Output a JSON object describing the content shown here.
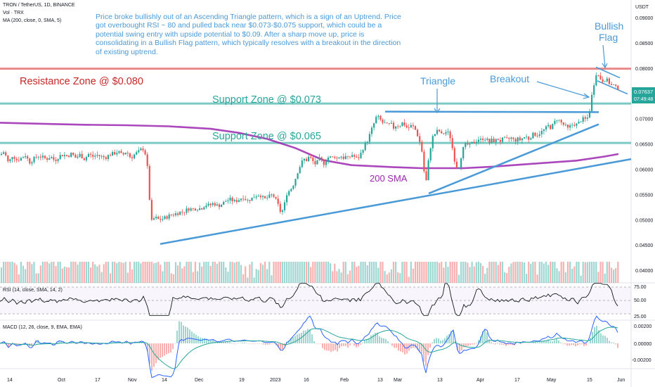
{
  "header": {
    "symbol_line": "TRON / TetherUS, 1D, BINANCE",
    "vol_line": "Vol · TRX",
    "ma_line": "MA (200, close, 0, SMA, 5)"
  },
  "analysis_note": "Price broke bullishly out of an Ascending Triangle pattern, which is a sign of an Uptrend. Price got overbought RSI ~ 80 and pulled back near $0.073-$0.075 support, which could be a potential swing entry with upside potential to $0.09. After a sharp move up, price is consolidating in a Bullish Flag pattern, which typically resolves with a breakout in the direction of existing uptrend.",
  "price_axis": {
    "unit": "USDT",
    "ticks": [
      "0.09000",
      "0.08500",
      "0.08000",
      "0.07500",
      "0.07000",
      "0.06500",
      "0.06000",
      "0.05500",
      "0.05000",
      "0.04500",
      "0.04000"
    ],
    "last_price": "0.07637",
    "countdown": "07:49:48"
  },
  "time_axis": [
    "14",
    "Oct",
    "17",
    "Nov",
    "14",
    "Dec",
    "19",
    "2023",
    "16",
    "Feb",
    "13",
    "Mar",
    "13",
    "Apr",
    "17",
    "May",
    "15",
    "Jun"
  ],
  "labels": {
    "resistance": "Resistance Zone @ $0.080",
    "support_073": "Support Zone @ $0.073",
    "support_065": "Support Zone @ $0.065",
    "sma": "200 SMA",
    "triangle": "Triangle",
    "breakout": "Breakout",
    "flag_line1": "Bullish",
    "flag_line2": "Flag"
  },
  "rsi_panel": {
    "title": "RSI (14, close, SMA, 14, 2)",
    "ticks": [
      "75.00",
      "50.00",
      "25.00"
    ]
  },
  "macd_panel": {
    "title": "MACD (12, 26, close, 9, EMA, EMA)",
    "ticks": [
      "0.00200",
      "0.00000",
      "-0.00200"
    ]
  },
  "colors": {
    "up": "#26a69a",
    "down": "#ef5350",
    "sma": "#9c27b0",
    "trend": "#4a9ad8",
    "support": "#26a69a",
    "resistance": "#e57373",
    "last_price_bg": "#26a69a"
  },
  "chart_data": {
    "type": "candlestick",
    "pair": "TRON / TetherUS",
    "timeframe": "1D",
    "exchange": "BINANCE",
    "ylim": [
      0.0375,
      0.0935
    ],
    "close_path": [
      [
        0,
        0.0628
      ],
      [
        6,
        0.0635
      ],
      [
        12,
        0.0612
      ],
      [
        18,
        0.0628
      ],
      [
        24,
        0.0618
      ],
      [
        30,
        0.0622
      ],
      [
        36,
        0.0628
      ],
      [
        42,
        0.0614
      ],
      [
        48,
        0.062
      ],
      [
        54,
        0.0627
      ],
      [
        60,
        0.0624
      ],
      [
        66,
        0.062
      ],
      [
        72,
        0.0625
      ],
      [
        78,
        0.0617
      ],
      [
        84,
        0.0626
      ],
      [
        90,
        0.0629
      ],
      [
        96,
        0.0626
      ],
      [
        102,
        0.0631
      ],
      [
        108,
        0.0622
      ],
      [
        114,
        0.0629
      ],
      [
        120,
        0.062
      ],
      [
        126,
        0.063
      ],
      [
        132,
        0.0625
      ],
      [
        138,
        0.0628
      ],
      [
        144,
        0.0625
      ],
      [
        150,
        0.0623
      ],
      [
        156,
        0.0629
      ],
      [
        162,
        0.0631
      ],
      [
        168,
        0.0635
      ],
      [
        174,
        0.0627
      ],
      [
        180,
        0.0636
      ],
      [
        186,
        0.0622
      ],
      [
        192,
        0.063
      ],
      [
        198,
        0.0635
      ],
      [
        203,
        0.0642
      ],
      [
        207,
        0.063
      ],
      [
        210,
        0.06
      ],
      [
        212,
        0.0555
      ],
      [
        214,
        0.052
      ],
      [
        216,
        0.0495
      ],
      [
        220,
        0.0505
      ],
      [
        226,
        0.05
      ],
      [
        232,
        0.0502
      ],
      [
        238,
        0.0506
      ],
      [
        244,
        0.051
      ],
      [
        250,
        0.0512
      ],
      [
        256,
        0.0515
      ],
      [
        262,
        0.0516
      ],
      [
        268,
        0.0522
      ],
      [
        274,
        0.0521
      ],
      [
        280,
        0.0523
      ],
      [
        286,
        0.0522
      ],
      [
        292,
        0.053
      ],
      [
        298,
        0.0528
      ],
      [
        304,
        0.0533
      ],
      [
        310,
        0.0527
      ],
      [
        316,
        0.0531
      ],
      [
        322,
        0.0538
      ],
      [
        328,
        0.054
      ],
      [
        334,
        0.0536
      ],
      [
        340,
        0.054
      ],
      [
        346,
        0.0545
      ],
      [
        352,
        0.0538
      ],
      [
        358,
        0.0542
      ],
      [
        364,
        0.0548
      ],
      [
        370,
        0.055
      ],
      [
        376,
        0.054
      ],
      [
        382,
        0.0545
      ],
      [
        388,
        0.055
      ],
      [
        392,
        0.054
      ],
      [
        396,
        0.0528
      ],
      [
        400,
        0.0512
      ],
      [
        404,
        0.0525
      ],
      [
        408,
        0.0552
      ],
      [
        412,
        0.0558
      ],
      [
        416,
        0.0565
      ],
      [
        420,
        0.058
      ],
      [
        424,
        0.0597
      ],
      [
        428,
        0.061
      ],
      [
        432,
        0.062
      ],
      [
        436,
        0.0618
      ],
      [
        440,
        0.0625
      ],
      [
        444,
        0.0618
      ],
      [
        448,
        0.061
      ],
      [
        452,
        0.0615
      ],
      [
        456,
        0.0622
      ],
      [
        460,
        0.061
      ],
      [
        464,
        0.0618
      ],
      [
        468,
        0.0625
      ],
      [
        472,
        0.0622
      ],
      [
        476,
        0.0626
      ],
      [
        480,
        0.062
      ],
      [
        484,
        0.0628
      ],
      [
        488,
        0.0622
      ],
      [
        492,
        0.0625
      ],
      [
        496,
        0.062
      ],
      [
        500,
        0.063
      ],
      [
        504,
        0.0625
      ],
      [
        508,
        0.062
      ],
      [
        512,
        0.0626
      ],
      [
        516,
        0.064
      ],
      [
        520,
        0.065
      ],
      [
        524,
        0.066
      ],
      [
        528,
        0.0676
      ],
      [
        532,
        0.069
      ],
      [
        536,
        0.0705
      ],
      [
        540,
        0.07
      ],
      [
        544,
        0.0692
      ],
      [
        548,
        0.069
      ],
      [
        552,
        0.0686
      ],
      [
        556,
        0.069
      ],
      [
        560,
        0.0682
      ],
      [
        564,
        0.0688
      ],
      [
        568,
        0.0685
      ],
      [
        572,
        0.0692
      ],
      [
        576,
        0.0688
      ],
      [
        580,
        0.068
      ],
      [
        584,
        0.0686
      ],
      [
        588,
        0.0684
      ],
      [
        592,
        0.0676
      ],
      [
        596,
        0.066
      ],
      [
        600,
        0.064
      ],
      [
        602,
        0.061
      ],
      [
        604,
        0.059
      ],
      [
        606,
        0.057
      ],
      [
        608,
        0.0598
      ],
      [
        612,
        0.064
      ],
      [
        616,
        0.0665
      ],
      [
        620,
        0.0672
      ],
      [
        624,
        0.0678
      ],
      [
        628,
        0.0668
      ],
      [
        632,
        0.0672
      ],
      [
        636,
        0.0674
      ],
      [
        640,
        0.0668
      ],
      [
        644,
        0.064
      ],
      [
        648,
        0.061
      ],
      [
        652,
        0.06
      ],
      [
        656,
        0.0625
      ],
      [
        660,
        0.0645
      ],
      [
        664,
        0.065
      ],
      [
        668,
        0.0646
      ],
      [
        672,
        0.0652
      ],
      [
        676,
        0.0654
      ],
      [
        680,
        0.066
      ],
      [
        684,
        0.0658
      ],
      [
        688,
        0.0662
      ],
      [
        692,
        0.066
      ],
      [
        696,
        0.0652
      ],
      [
        700,
        0.0658
      ],
      [
        704,
        0.0655
      ],
      [
        708,
        0.066
      ],
      [
        712,
        0.0656
      ],
      [
        716,
        0.066
      ],
      [
        720,
        0.0658
      ],
      [
        724,
        0.066
      ],
      [
        728,
        0.0662
      ],
      [
        732,
        0.0656
      ],
      [
        736,
        0.066
      ],
      [
        740,
        0.0658
      ],
      [
        744,
        0.0662
      ],
      [
        748,
        0.0665
      ],
      [
        752,
        0.066
      ],
      [
        756,
        0.0666
      ],
      [
        760,
        0.067
      ],
      [
        764,
        0.0668
      ],
      [
        768,
        0.0672
      ],
      [
        772,
        0.0675
      ],
      [
        776,
        0.068
      ],
      [
        780,
        0.0686
      ],
      [
        784,
        0.0682
      ],
      [
        788,
        0.069
      ],
      [
        792,
        0.07
      ],
      [
        796,
        0.0696
      ],
      [
        800,
        0.069
      ],
      [
        804,
        0.0686
      ],
      [
        808,
        0.068
      ],
      [
        812,
        0.0686
      ],
      [
        816,
        0.069
      ],
      [
        820,
        0.0688
      ],
      [
        824,
        0.0692
      ],
      [
        828,
        0.07
      ],
      [
        832,
        0.0698
      ],
      [
        836,
        0.0702
      ],
      [
        838,
        0.071
      ],
      [
        840,
        0.0725
      ],
      [
        842,
        0.0745
      ],
      [
        844,
        0.076
      ],
      [
        846,
        0.0776
      ],
      [
        848,
        0.079
      ],
      [
        850,
        0.0788
      ],
      [
        852,
        0.0783
      ],
      [
        854,
        0.078
      ],
      [
        856,
        0.0778
      ],
      [
        858,
        0.0775
      ],
      [
        860,
        0.078
      ],
      [
        862,
        0.0774
      ],
      [
        864,
        0.0776
      ],
      [
        866,
        0.077
      ],
      [
        868,
        0.0772
      ],
      [
        870,
        0.0766
      ],
      [
        872,
        0.0768
      ],
      [
        874,
        0.0764
      ],
      [
        876,
        0.0762
      ],
      [
        878,
        0.0758
      ],
      [
        880,
        0.0763
      ]
    ],
    "sma_200_path": [
      [
        0,
        0.0692
      ],
      [
        60,
        0.069
      ],
      [
        120,
        0.0688
      ],
      [
        180,
        0.0687
      ],
      [
        240,
        0.0685
      ],
      [
        300,
        0.068
      ],
      [
        340,
        0.0672
      ],
      [
        380,
        0.066
      ],
      [
        420,
        0.0642
      ],
      [
        460,
        0.0618
      ],
      [
        500,
        0.0608
      ],
      [
        560,
        0.0604
      ],
      [
        600,
        0.0602
      ],
      [
        660,
        0.0602
      ],
      [
        700,
        0.0605
      ],
      [
        760,
        0.0611
      ],
      [
        820,
        0.0617
      ],
      [
        860,
        0.0625
      ],
      [
        880,
        0.063
      ]
    ],
    "horizontal_levels": {
      "resistance": 0.0799,
      "support_high": 0.073,
      "support_low": 0.0652
    },
    "ascending_trendline": {
      "from": [
        228,
        0.0452
      ],
      "to": [
        898,
        0.062
      ]
    },
    "triangle_base_trendline": {
      "from": [
        610,
        0.0552
      ],
      "to": [
        852,
        0.0689
      ]
    },
    "triangle_top_line": {
      "from": [
        548,
        0.0714
      ],
      "to": [
        852,
        0.0713
      ]
    },
    "rsi": {
      "ylim": [
        15,
        85
      ],
      "levels": [
        75,
        50,
        25
      ]
    },
    "macd": {
      "ylim": [
        -0.0025,
        0.0025
      ],
      "levels": [
        0.002,
        0,
        -0.002
      ]
    }
  }
}
